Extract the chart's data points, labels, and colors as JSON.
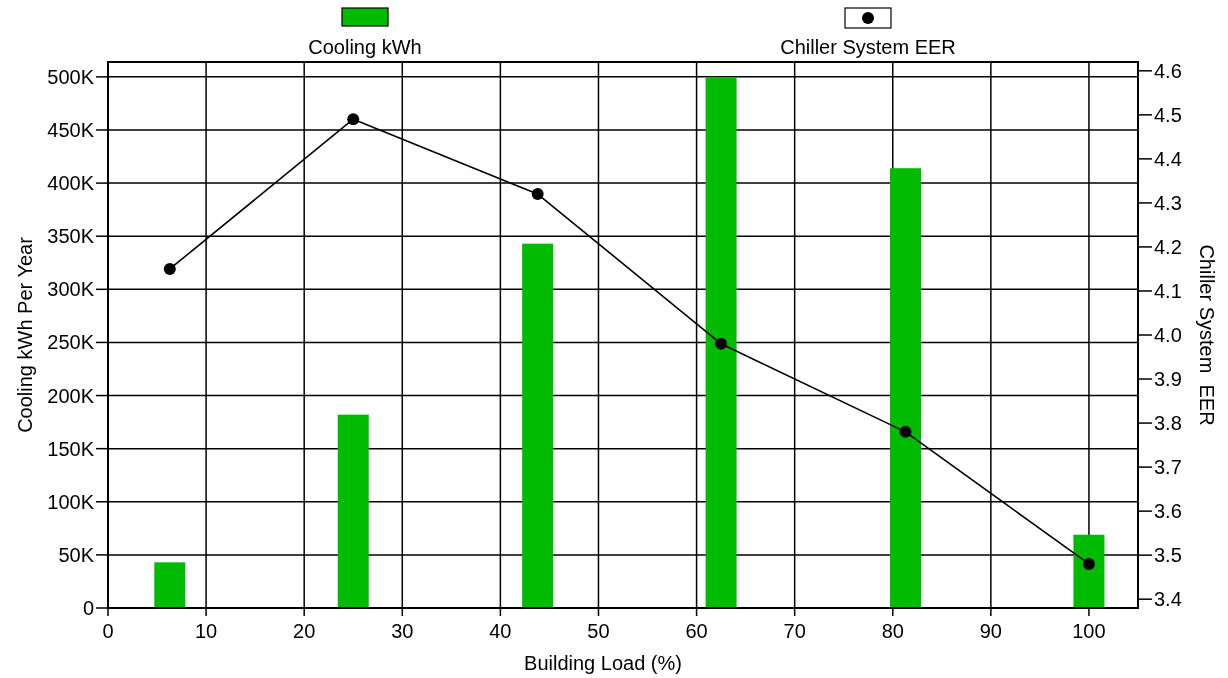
{
  "chart_data": {
    "type": "bar",
    "xlabel": "Building Load (%)",
    "ylabel": "Cooling kWh Per Year",
    "y2label": "Chiller System  EER",
    "x": [
      6.3,
      25,
      43.8,
      62.5,
      81.3,
      100
    ],
    "series": [
      {
        "name": "Cooling kWh",
        "color": "#00bb00",
        "values": [
          43000,
          182000,
          343000,
          500000,
          414000,
          69000
        ]
      },
      {
        "name": "Chiller System EER",
        "type": "line",
        "axis": "y2",
        "color": "#000000",
        "marker": "circle",
        "values": [
          4.15,
          4.49,
          4.32,
          3.98,
          3.78,
          3.48
        ]
      }
    ],
    "xlim": [
      0,
      105
    ],
    "xticks": [
      0,
      10,
      20,
      30,
      40,
      50,
      60,
      70,
      80,
      90,
      100
    ],
    "ylim": [
      0,
      514000
    ],
    "yticks": [
      {
        "value": 0,
        "label": "0"
      },
      {
        "value": 50000,
        "label": "50K"
      },
      {
        "value": 100000,
        "label": "100K"
      },
      {
        "value": 150000,
        "label": "150K"
      },
      {
        "value": 200000,
        "label": "200K"
      },
      {
        "value": 250000,
        "label": "250K"
      },
      {
        "value": 300000,
        "label": "300K"
      },
      {
        "value": 350000,
        "label": "350K"
      },
      {
        "value": 400000,
        "label": "400K"
      },
      {
        "value": 450000,
        "label": "450K"
      },
      {
        "value": 500000,
        "label": "500K"
      }
    ],
    "y2lim": [
      3.38,
      4.62
    ],
    "y2ticks": [
      {
        "value": 3.4,
        "label": "3.4"
      },
      {
        "value": 3.5,
        "label": "3.5"
      },
      {
        "value": 3.6,
        "label": "3.6"
      },
      {
        "value": 3.7,
        "label": "3.7"
      },
      {
        "value": 3.8,
        "label": "3.8"
      },
      {
        "value": 3.9,
        "label": "3.9"
      },
      {
        "value": 4.0,
        "label": "4.0"
      },
      {
        "value": 4.1,
        "label": "4.1"
      },
      {
        "value": 4.2,
        "label": "4.2"
      },
      {
        "value": 4.3,
        "label": "4.3"
      },
      {
        "value": 4.4,
        "label": "4.4"
      },
      {
        "value": 4.5,
        "label": "4.5"
      },
      {
        "value": 4.6,
        "label": "4.6"
      }
    ],
    "grid": true,
    "legend": "top"
  }
}
